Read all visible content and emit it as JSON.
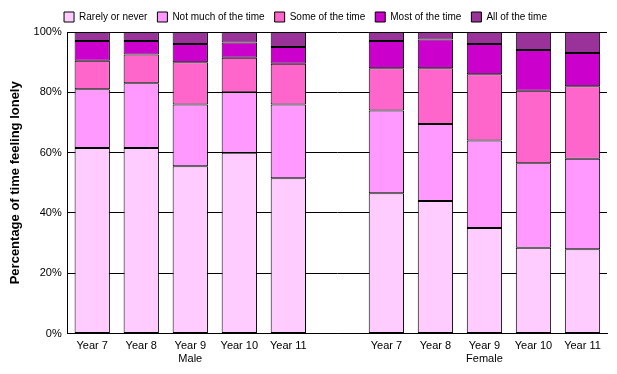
{
  "chart_data": {
    "type": "bar",
    "stacked": true,
    "grid": true,
    "legend": "top",
    "y_label": "Percentage of time feeling lonely",
    "categories": [
      "Year 7",
      "Year 8",
      "Year 9",
      "Year 10",
      "Year 11",
      null,
      "Year 7",
      "Year 8",
      "Year 9",
      "Year 10",
      "Year 11"
    ],
    "group_labels": [
      null,
      null,
      "Male",
      null,
      null,
      null,
      null,
      null,
      "Female",
      null,
      null
    ],
    "ylim": [
      0,
      100
    ],
    "yticks": [
      {
        "value": 0,
        "label": "0%"
      },
      {
        "value": 20,
        "label": "20%"
      },
      {
        "value": 40,
        "label": "40%"
      },
      {
        "value": 60,
        "label": "60%"
      },
      {
        "value": 80,
        "label": "80%"
      },
      {
        "value": 100,
        "label": "100%"
      }
    ],
    "series": [
      {
        "name": "Rarely or never",
        "color": "#ffccff",
        "values": [
          61.5,
          61.5,
          55.5,
          60,
          51.5,
          null,
          46.5,
          44,
          35,
          28.5,
          28
        ]
      },
      {
        "name": "Not much of the time",
        "color": "#ff99ff",
        "values": [
          19.5,
          21.5,
          20.5,
          20,
          24.5,
          null,
          27.5,
          25.5,
          29,
          28,
          30
        ]
      },
      {
        "name": "Some of the time",
        "color": "#ff66cc",
        "values": [
          9.5,
          9.5,
          14,
          11.5,
          13.5,
          null,
          14,
          18.5,
          22,
          24,
          24
        ]
      },
      {
        "name": "Most of the time",
        "color": "#cc00cc",
        "values": [
          6.5,
          4.5,
          6,
          5,
          5.5,
          null,
          9,
          9.5,
          10,
          13.5,
          11
        ]
      },
      {
        "name": "All of the time",
        "color": "#993399",
        "values": [
          3,
          3,
          4,
          3.5,
          5,
          null,
          3,
          2.5,
          4,
          6,
          7
        ]
      }
    ]
  }
}
